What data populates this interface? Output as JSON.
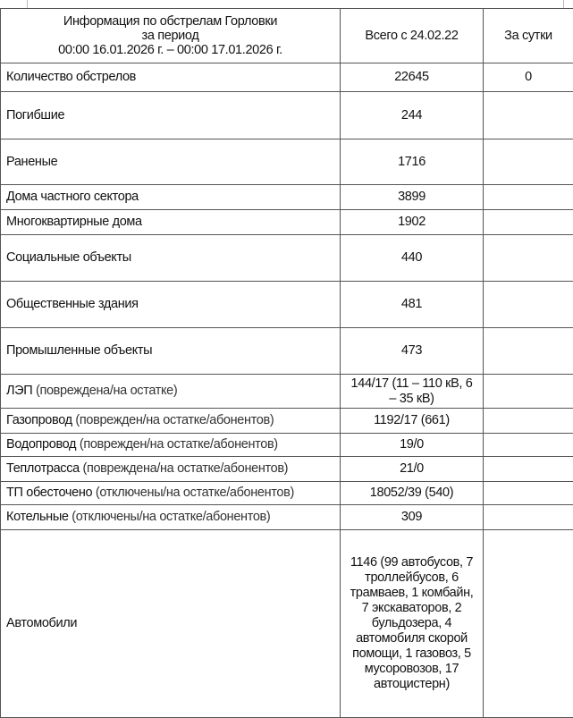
{
  "header": {
    "title_lines": [
      "Информация по обстрелам Горловки",
      "за период",
      "00:00 16.01.2026 г. – 00:00 17.01.2026 г."
    ],
    "col_total": "Всего с 24.02.22",
    "col_day": "За сутки"
  },
  "rows": [
    {
      "label": "Количество обстрелов",
      "note": "",
      "total": "22645",
      "day": "0"
    },
    {
      "label": "Погибшие",
      "note": "",
      "total": "244",
      "day": ""
    },
    {
      "label": "Раненые",
      "note": "",
      "total": "1716",
      "day": ""
    },
    {
      "label": "Дома частного сектора",
      "note": "",
      "total": "3899",
      "day": ""
    },
    {
      "label": "Многоквартирные дома",
      "note": "",
      "total": "1902",
      "day": ""
    },
    {
      "label": "Социальные объекты",
      "note": "",
      "total": "440",
      "day": ""
    },
    {
      "label": "Общественные здания",
      "note": "",
      "total": "481",
      "day": ""
    },
    {
      "label": "Промышленные объекты",
      "note": "",
      "total": "473",
      "day": ""
    },
    {
      "label": "ЛЭП",
      "note": " (повреждена/на остатке)",
      "total": "144/17 (11 – 110 кВ, 6 – 35 кВ)",
      "day": ""
    },
    {
      "label": "Газопровод",
      "note": " (поврежден/на остатке/абонентов)",
      "total": "1192/17 (661)",
      "day": ""
    },
    {
      "label": "Водопровод",
      "note": " (поврежден/на остатке/абонентов)",
      "total": "19/0",
      "day": ""
    },
    {
      "label": "Теплотрасса",
      "note": " (повреждена/на остатке/абонентов)",
      "total": "21/0",
      "day": ""
    },
    {
      "label": "ТП обесточено",
      "note": " (отключены/на остатке/абонентов)",
      "total": "18052/39 (540)",
      "day": ""
    },
    {
      "label": "Котельные",
      "note": " (отключены/на остатке/абонентов)",
      "total": "309",
      "day": ""
    },
    {
      "label": "Автомобили",
      "note": "",
      "total": "1146 (99 автобусов, 7 троллейбусов, 6 трамваев, 1 комбайн, 7 экскаваторов, 2 бульдозера, 4 автомобиля скорой помощи, 1 газовоз, 5 мусоровозов, 17 автоцистерн)",
      "day": ""
    }
  ]
}
